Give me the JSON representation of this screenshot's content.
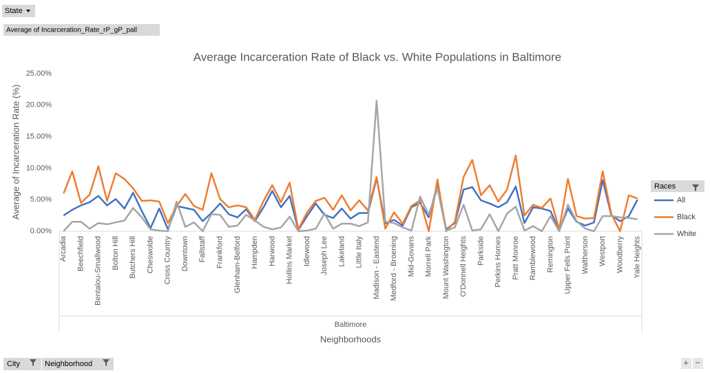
{
  "ui": {
    "state_button": "State",
    "value_field": "Average of Incarceration_Rate_rP_gP_pall",
    "city_button": "City",
    "neighborhood_button": "Neighborhood",
    "expand": "+",
    "collapse": "−"
  },
  "chart_data": {
    "type": "line",
    "title": "Average Incarceration Rate of Black vs. White Populations in Baltimore",
    "ylabel": "Average of Incarceration Rate (%)",
    "group_label": "Baltimore",
    "xlabel": "Neighborhoods",
    "legend_title": "Races",
    "legend": "right",
    "grid": false,
    "categories": [
      "Arcadia",
      null,
      "Beechfield",
      null,
      "Bentalou-Smallwood",
      null,
      "Bolton Hill",
      null,
      "Butchers Hill",
      null,
      "Cheswolde",
      null,
      "Cross Country",
      null,
      "Downtown",
      null,
      "Fallstaff",
      null,
      "Frankford",
      null,
      "Glenham-Belford",
      null,
      "Hampden",
      null,
      "Harwood",
      null,
      "Hollins Market",
      null,
      "Idlewood",
      null,
      "Joseph Lee",
      null,
      "Lakeland",
      null,
      "Little Italy",
      null,
      "Madison - Eastend",
      null,
      "Medford - Broening",
      null,
      "Mid-Govans",
      null,
      "Morrell Park",
      null,
      "Mount Washington",
      null,
      "O'Donnell Heights",
      null,
      "Parkside",
      null,
      "Perkins Homes",
      null,
      "Pratt Monroe",
      null,
      "Ramblewood",
      null,
      "Remington",
      null,
      "Upper Fells Point",
      null,
      "Waltherson",
      null,
      "Westport",
      null,
      "Woodberry",
      null,
      "Yale Heights"
    ],
    "ylim": [
      0,
      25
    ],
    "yticks": [
      {
        "value": 0,
        "label": "0.00%"
      },
      {
        "value": 5,
        "label": "5.00%"
      },
      {
        "value": 10,
        "label": "10.00%"
      },
      {
        "value": 15,
        "label": "15.00%"
      },
      {
        "value": 20,
        "label": "20.00%"
      },
      {
        "value": 25,
        "label": "25.00%"
      }
    ],
    "series": [
      {
        "name": "All",
        "color": "#4472c4",
        "values": [
          2.5,
          3.4,
          4.1,
          4.6,
          5.6,
          4.1,
          5.1,
          3.6,
          6.1,
          3.2,
          0.5,
          3.6,
          0.3,
          4.0,
          3.7,
          3.4,
          1.6,
          2.9,
          4.4,
          2.7,
          2.2,
          3.5,
          1.6,
          3.8,
          6.4,
          3.8,
          5.6,
          0.2,
          2.4,
          4.4,
          2.6,
          2.1,
          3.6,
          2.0,
          2.9,
          2.9,
          8.4,
          1.2,
          1.8,
          0.9,
          3.8,
          4.5,
          2.2,
          7.4,
          0.3,
          1.3,
          6.6,
          7.0,
          4.9,
          4.4,
          3.8,
          4.6,
          7.1,
          1.3,
          3.8,
          3.6,
          3.2,
          0.1,
          3.6,
          1.5,
          0.9,
          1.4,
          8.1,
          2.5,
          1.6,
          2.4,
          5.0
        ]
      },
      {
        "name": "Black",
        "color": "#ed7d31",
        "values": [
          6.0,
          9.5,
          4.5,
          5.8,
          10.3,
          4.8,
          9.2,
          8.3,
          6.8,
          4.8,
          4.9,
          4.7,
          1.3,
          4.0,
          5.9,
          4.0,
          3.4,
          9.2,
          5.1,
          3.8,
          4.1,
          3.8,
          1.8,
          4.8,
          7.3,
          4.6,
          7.7,
          0.3,
          3.0,
          4.8,
          5.3,
          3.4,
          5.7,
          3.3,
          4.9,
          3.3,
          8.6,
          0.4,
          3.0,
          1.2,
          4.0,
          4.9,
          0.0,
          8.2,
          0.0,
          1.5,
          8.6,
          11.3,
          5.7,
          7.3,
          4.7,
          6.6,
          12.0,
          2.5,
          4.2,
          3.7,
          5.2,
          0.3,
          8.3,
          2.4,
          2.0,
          2.1,
          9.5,
          2.7,
          0.0,
          5.7,
          5.2
        ]
      },
      {
        "name": "White",
        "color": "#a5a5a5",
        "values": [
          0.0,
          1.5,
          1.5,
          0.4,
          1.3,
          1.1,
          1.4,
          1.7,
          3.7,
          2.2,
          0.3,
          0.1,
          0.0,
          4.7,
          0.7,
          1.4,
          0.0,
          2.7,
          2.6,
          0.7,
          0.9,
          2.6,
          1.7,
          0.7,
          0.3,
          0.6,
          2.3,
          0.0,
          0.1,
          0.4,
          2.8,
          0.4,
          1.2,
          1.2,
          0.8,
          1.4,
          20.7,
          1.5,
          1.3,
          0.6,
          0.1,
          5.5,
          2.6,
          6.8,
          0.1,
          0.6,
          4.2,
          0.1,
          0.3,
          2.7,
          0.0,
          2.8,
          3.9,
          0.1,
          0.8,
          0.0,
          2.4,
          0.0,
          4.2,
          1.6,
          0.4,
          0.0,
          2.4,
          2.4,
          2.2,
          2.1,
          1.9
        ]
      }
    ]
  }
}
